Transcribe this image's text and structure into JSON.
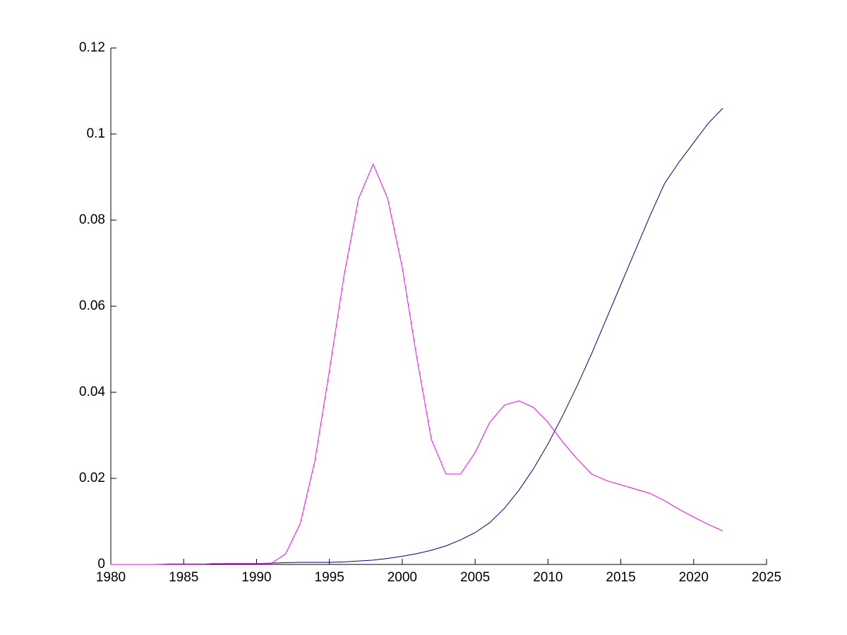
{
  "chart_data": {
    "type": "line",
    "x": [
      1980,
      1981,
      1982,
      1983,
      1984,
      1985,
      1986,
      1987,
      1988,
      1989,
      1990,
      1991,
      1992,
      1993,
      1994,
      1995,
      1996,
      1997,
      1998,
      1999,
      2000,
      2001,
      2002,
      2003,
      2004,
      2005,
      2006,
      2007,
      2008,
      2009,
      2010,
      2011,
      2012,
      2013,
      2014,
      2015,
      2016,
      2017,
      2018,
      2019,
      2020,
      2021,
      2022
    ],
    "series": [
      {
        "color": "#000080",
        "values": [
          0,
          0,
          0,
          0,
          0.0001,
          0.0001,
          0.0001,
          0.0001,
          0.0002,
          0.0002,
          0.0002,
          0.0003,
          0.0004,
          0.0005,
          0.0005,
          0.0005,
          0.0006,
          0.0008,
          0.001,
          0.0014,
          0.0019,
          0.0025,
          0.0033,
          0.0043,
          0.0057,
          0.0074,
          0.0097,
          0.013,
          0.0172,
          0.0222,
          0.028,
          0.0345,
          0.0415,
          0.049,
          0.057,
          0.065,
          0.073,
          0.081,
          0.0885,
          0.0935,
          0.098,
          0.1025,
          0.106
        ]
      },
      {
        "color": "#ff00ff",
        "values": [
          0,
          0,
          0,
          0,
          0,
          0,
          0,
          0.0002,
          0.0002,
          0.0002,
          0.0002,
          0.0002,
          0.0025,
          0.0095,
          0.024,
          0.045,
          0.067,
          0.085,
          0.093,
          0.085,
          0.069,
          0.048,
          0.029,
          0.021,
          0.021,
          0.026,
          0.033,
          0.037,
          0.038,
          0.0365,
          0.033,
          0.0285,
          0.0245,
          0.021,
          0.0195,
          0.0185,
          0.0175,
          0.0165,
          0.0148,
          0.0128,
          0.011,
          0.0093,
          0.0078
        ]
      }
    ],
    "xlim": [
      1980,
      2025
    ],
    "xticks": [
      1980,
      1985,
      1990,
      1995,
      2000,
      2005,
      2010,
      2015,
      2020,
      2025
    ],
    "ylim": [
      0,
      0.12
    ],
    "yticks": [
      0,
      0.02,
      0.04,
      0.06,
      0.08,
      0.1,
      0.12
    ]
  }
}
